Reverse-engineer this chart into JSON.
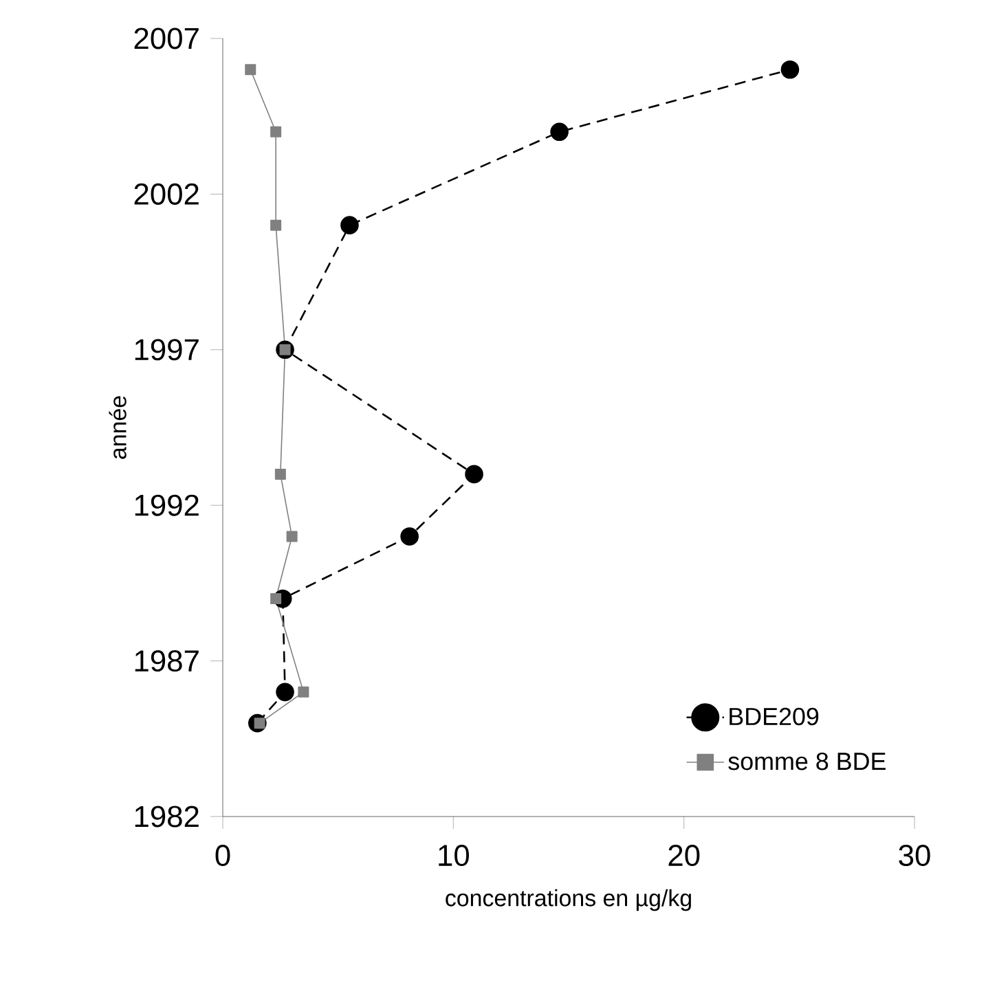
{
  "chart_data": {
    "type": "line",
    "xlabel": "concentrations en µg/kg",
    "ylabel": "année",
    "xlim": [
      0,
      30
    ],
    "ylim": [
      1982,
      2007
    ],
    "xticks": [
      0,
      10,
      20,
      30
    ],
    "yticks": [
      1982,
      1987,
      1992,
      1997,
      2002,
      2007
    ],
    "grid": false,
    "legend": "bottom right",
    "series": [
      {
        "name": "BDE209",
        "color": "#000000",
        "marker": "circle",
        "line_style": "dashed",
        "x": [
          1.5,
          2.7,
          2.6,
          8.1,
          10.9,
          2.7,
          5.5,
          14.6,
          24.6
        ],
        "values": [
          1985,
          1986,
          1989,
          1991,
          1993,
          1997,
          2001,
          2004,
          2006
        ]
      },
      {
        "name": "somme 8 BDE",
        "color": "#808080",
        "marker": "square",
        "line_style": "solid",
        "x": [
          1.6,
          3.5,
          2.3,
          3.0,
          2.5,
          2.7,
          2.3,
          2.3,
          1.2
        ],
        "values": [
          1985,
          1986,
          1989,
          1991,
          1993,
          1997,
          2001,
          2004,
          2006
        ]
      }
    ]
  }
}
